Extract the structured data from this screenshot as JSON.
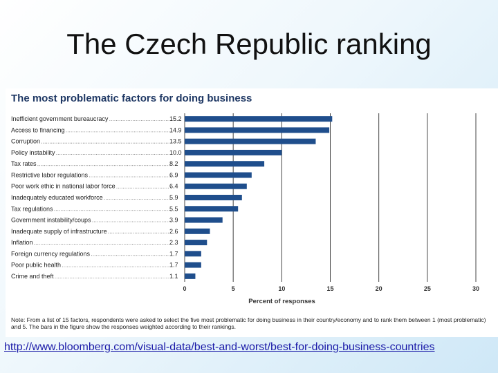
{
  "slide": {
    "title": "The Czech Republic ranking",
    "source_link": "http://www.bloomberg.com/visual-data/best-and-worst/best-for-doing-business-countries"
  },
  "chart_data": {
    "type": "bar",
    "orientation": "horizontal",
    "title": "The most problematic factors for doing business",
    "xlabel": "Percent of responses",
    "ylabel": "",
    "xlim": [
      0,
      30
    ],
    "xticks": [
      0,
      5,
      10,
      15,
      20,
      25,
      30
    ],
    "grid": true,
    "bar_color": "#1f4e8c",
    "categories": [
      "Inefficient government bureaucracy",
      "Access to financing",
      "Corruption",
      "Policy instability",
      "Tax rates",
      "Restrictive labor regulations",
      "Poor work ethic in national labor force",
      "Inadequately educated workforce",
      "Tax regulations",
      "Government instability/coups",
      "Inadequate supply of infrastructure",
      "Inflation",
      "Foreign currency regulations",
      "Poor public health",
      "Crime and theft"
    ],
    "values": [
      15.2,
      14.9,
      13.5,
      10.0,
      8.2,
      6.9,
      6.4,
      5.9,
      5.5,
      3.9,
      2.6,
      2.3,
      1.7,
      1.7,
      1.1
    ],
    "value_labels": [
      "15.2",
      "14.9",
      "13.5",
      "10.0",
      "8.2",
      "6.9",
      "6.4",
      "5.9",
      "5.5",
      "3.9",
      "2.6",
      "2.3",
      "1.7",
      "1.7",
      "1.1"
    ],
    "note": "Note: From a list of 15 factors, respondents were asked to select the five most problematic for doing business in their country/economy and to rank them between 1 (most problematic) and 5. The bars in the figure show the responses weighted according to their rankings."
  }
}
